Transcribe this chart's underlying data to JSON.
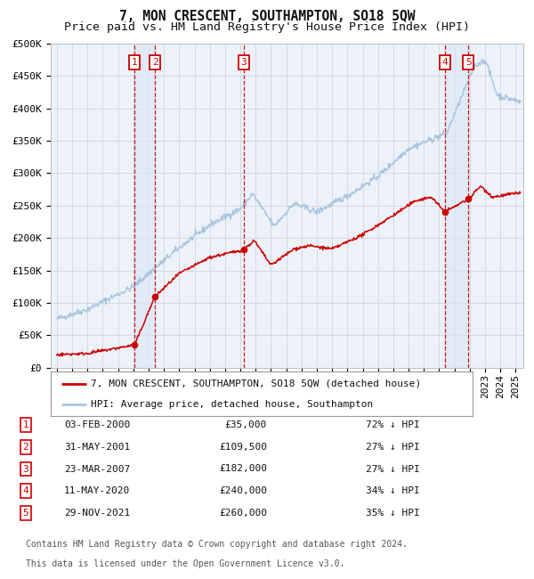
{
  "title": "7, MON CRESCENT, SOUTHAMPTON, SO18 5QW",
  "subtitle": "Price paid vs. HM Land Registry's House Price Index (HPI)",
  "ylim": [
    0,
    500000
  ],
  "yticks": [
    0,
    50000,
    100000,
    150000,
    200000,
    250000,
    300000,
    350000,
    400000,
    450000,
    500000
  ],
  "ytick_labels": [
    "£0",
    "£50K",
    "£100K",
    "£150K",
    "£200K",
    "£250K",
    "£300K",
    "£350K",
    "£400K",
    "£450K",
    "£500K"
  ],
  "xlim_start": 1994.6,
  "xlim_end": 2025.5,
  "hpi_color": "#a8c4e0",
  "price_color": "#cc0000",
  "background_color": "#ffffff",
  "plot_bg_color": "#edf2f9",
  "grid_color": "#c8d0dc",
  "sale_points": [
    {
      "year": 2000.085,
      "price": 35000,
      "label": "1"
    },
    {
      "year": 2001.413,
      "price": 109500,
      "label": "2"
    },
    {
      "year": 2007.22,
      "price": 182000,
      "label": "3"
    },
    {
      "year": 2020.36,
      "price": 240000,
      "label": "4"
    },
    {
      "year": 2021.91,
      "price": 260000,
      "label": "5"
    }
  ],
  "legend_entries": [
    {
      "label": "7, MON CRESCENT, SOUTHAMPTON, SO18 5QW (detached house)",
      "color": "#cc0000"
    },
    {
      "label": "HPI: Average price, detached house, Southampton",
      "color": "#a8c4e0"
    }
  ],
  "table_rows": [
    {
      "num": "1",
      "date": "03-FEB-2000",
      "price": "£35,000",
      "note": "72% ↓ HPI"
    },
    {
      "num": "2",
      "date": "31-MAY-2001",
      "price": "£109,500",
      "note": "27% ↓ HPI"
    },
    {
      "num": "3",
      "date": "23-MAR-2007",
      "price": "£182,000",
      "note": "27% ↓ HPI"
    },
    {
      "num": "4",
      "date": "11-MAY-2020",
      "price": "£240,000",
      "note": "34% ↓ HPI"
    },
    {
      "num": "5",
      "date": "29-NOV-2021",
      "price": "£260,000",
      "note": "35% ↓ HPI"
    }
  ],
  "footnote_line1": "Contains HM Land Registry data © Crown copyright and database right 2024.",
  "footnote_line2": "This data is licensed under the Open Government Licence v3.0.",
  "title_fontsize": 10.5,
  "subtitle_fontsize": 9.5,
  "tick_fontsize": 8,
  "label_box_color": "#cc0000",
  "span_color": "#dce8f5"
}
